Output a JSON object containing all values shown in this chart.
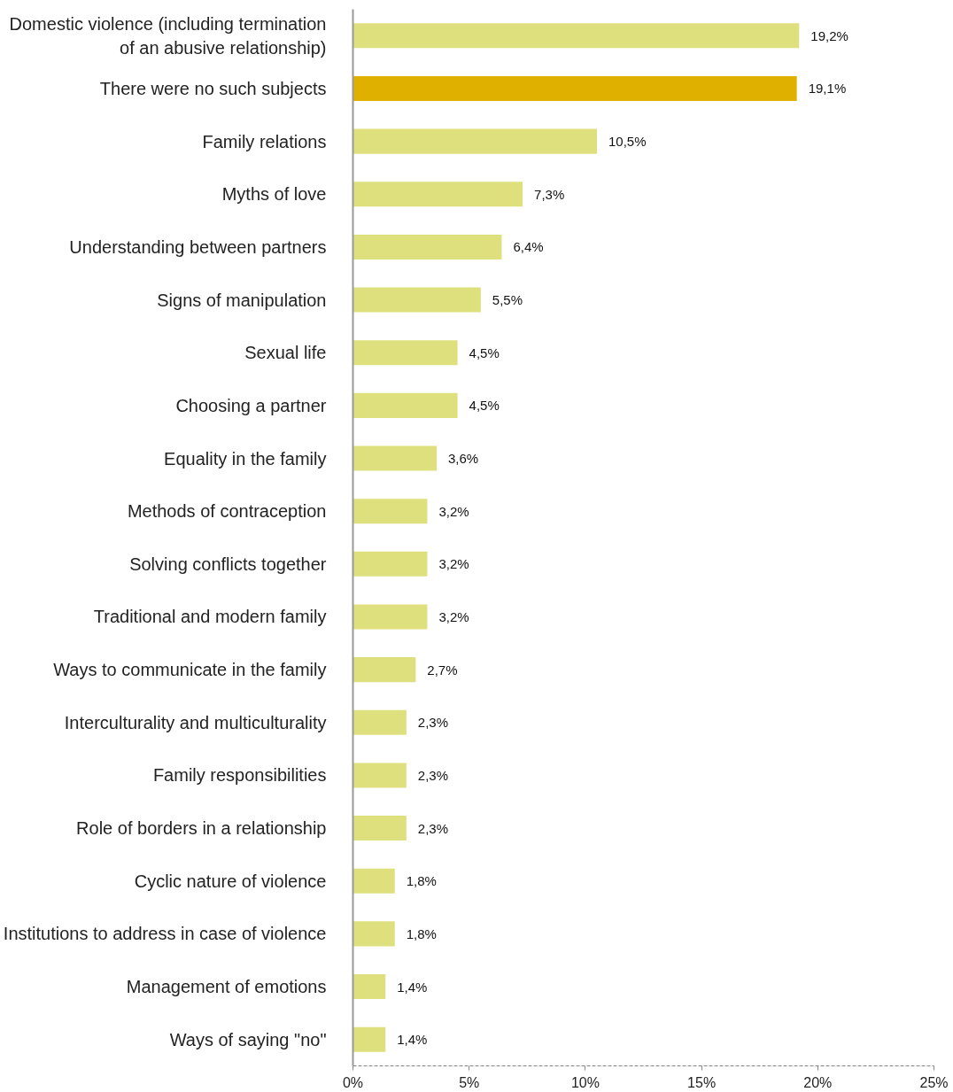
{
  "chart_data": {
    "type": "bar",
    "orientation": "horizontal",
    "categories": [
      "Domestic violence (including termination of an abusive relationship)",
      "There were no such subjects",
      "Family relations",
      "Myths of love",
      "Understanding between partners",
      "Signs of manipulation",
      "Sexual life",
      "Choosing a partner",
      "Equality in the family",
      "Methods of contraception",
      "Solving conflicts together",
      "Traditional and modern family",
      "Ways to communicate in the family",
      "Interculturality and multiculturality",
      "Family responsibilities",
      "Role of borders in a relationship",
      "Cyclic nature of violence",
      "Institutions to address in case of violence",
      "Management of emotions",
      "Ways of saying \"no\""
    ],
    "values": [
      19.2,
      19.1,
      10.5,
      7.3,
      6.4,
      5.5,
      4.5,
      4.5,
      3.6,
      3.2,
      3.2,
      3.2,
      2.7,
      2.3,
      2.3,
      2.3,
      1.8,
      1.8,
      1.4,
      1.4
    ],
    "value_labels": [
      "19,2%",
      "19,1%",
      "10,5%",
      "7,3%",
      "6,4%",
      "5,5%",
      "4,5%",
      "4,5%",
      "3,6%",
      "3,2%",
      "3,2%",
      "3,2%",
      "2,7%",
      "2,3%",
      "2,3%",
      "2,3%",
      "1,8%",
      "1,8%",
      "1,4%",
      "1,4%"
    ],
    "colors": [
      "#dde07c",
      "#e0b000",
      "#dde07c",
      "#dde07c",
      "#dde07c",
      "#dde07c",
      "#dde07c",
      "#dde07c",
      "#dde07c",
      "#dde07c",
      "#dde07c",
      "#dde07c",
      "#dde07c",
      "#dde07c",
      "#dde07c",
      "#dde07c",
      "#dde07c",
      "#dde07c",
      "#dde07c",
      "#dde07c"
    ],
    "xlim": [
      0,
      25
    ],
    "xticks": [
      {
        "value": 0,
        "label": "0%"
      },
      {
        "value": 5,
        "label": "5%"
      },
      {
        "value": 10,
        "label": "10%"
      },
      {
        "value": 15,
        "label": "15%"
      },
      {
        "value": 20,
        "label": "20%"
      },
      {
        "value": 25,
        "label": "25%"
      }
    ],
    "grid": false
  }
}
